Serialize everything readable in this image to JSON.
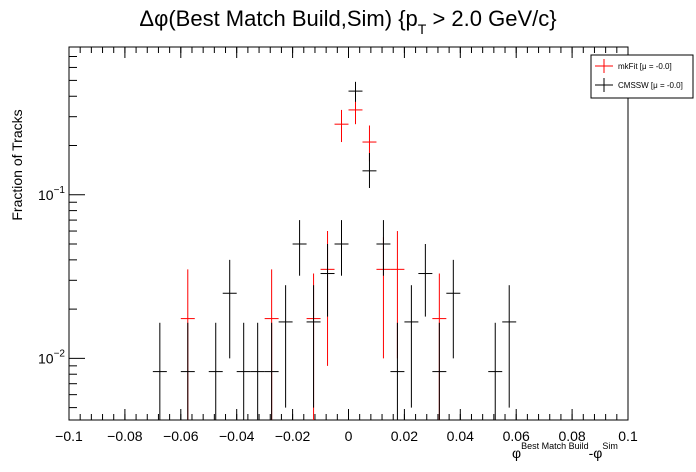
{
  "chart_data": {
    "type": "scatter",
    "title_parts": {
      "main": "Δφ(Best Match Build,Sim) {p",
      "sub": "T",
      "rest": " > 2.0 GeV/c}"
    },
    "xlabel_parts": {
      "main": "φ",
      "sup1": "Best Match Build",
      "mid": "-φ",
      "sup2": "Sim"
    },
    "ylabel": "Fraction of Tracks",
    "x_range": [
      -0.1,
      0.1
    ],
    "y_range": [
      0.0042,
      0.8
    ],
    "y_scale": "log",
    "bin_half_width": 0.0025,
    "x_ticks": [
      -0.1,
      -0.08,
      -0.06,
      -0.04,
      -0.02,
      0,
      0.02,
      0.04,
      0.06,
      0.08,
      0.1
    ],
    "x_tick_labels": [
      "−0.1",
      "−0.08",
      "−0.06",
      "−0.04",
      "−0.02",
      "0",
      "0.02",
      "0.04",
      "0.06",
      "0.08",
      "0.1"
    ],
    "y_major_ticks": [
      {
        "value": 0.1,
        "base": "10",
        "exp": "−1"
      },
      {
        "value": 0.01,
        "base": "10",
        "exp": "−2"
      }
    ],
    "legend_position": "top-right",
    "series": [
      {
        "name": "mkFit  [μ = -0.0]",
        "color": "#ff0000",
        "points": [
          {
            "x": -0.0575,
            "y": 0.0175,
            "lo": 0.0035,
            "hi": 0.035
          },
          {
            "x": -0.0275,
            "y": 0.0175,
            "lo": 0.0035,
            "hi": 0.035
          },
          {
            "x": -0.0125,
            "y": 0.0175,
            "lo": 0.0035,
            "hi": 0.033
          },
          {
            "x": -0.0075,
            "y": 0.035,
            "lo": 0.009,
            "hi": 0.06
          },
          {
            "x": -0.0025,
            "y": 0.27,
            "lo": 0.21,
            "hi": 0.33
          },
          {
            "x": 0.0025,
            "y": 0.33,
            "lo": 0.27,
            "hi": 0.4
          },
          {
            "x": 0.0075,
            "y": 0.21,
            "lo": 0.16,
            "hi": 0.265
          },
          {
            "x": 0.0125,
            "y": 0.035,
            "lo": 0.01,
            "hi": 0.055
          },
          {
            "x": 0.0175,
            "y": 0.035,
            "lo": 0.01,
            "hi": 0.06
          },
          {
            "x": 0.0325,
            "y": 0.0175,
            "lo": 0.0035,
            "hi": 0.033
          }
        ]
      },
      {
        "name": "CMSSW  [μ = -0.0]",
        "color": "#000000",
        "points": [
          {
            "x": -0.0675,
            "y": 0.0083,
            "lo": 0.0035,
            "hi": 0.0165
          },
          {
            "x": -0.0575,
            "y": 0.0083,
            "lo": 0.0035,
            "hi": 0.0165
          },
          {
            "x": -0.0475,
            "y": 0.0083,
            "lo": 0.0035,
            "hi": 0.0165
          },
          {
            "x": -0.0425,
            "y": 0.025,
            "lo": 0.01,
            "hi": 0.04
          },
          {
            "x": -0.0375,
            "y": 0.0083,
            "lo": 0.0035,
            "hi": 0.0165
          },
          {
            "x": -0.0325,
            "y": 0.0083,
            "lo": 0.0035,
            "hi": 0.0165
          },
          {
            "x": -0.0275,
            "y": 0.0083,
            "lo": 0.0035,
            "hi": 0.0165
          },
          {
            "x": -0.0225,
            "y": 0.0167,
            "lo": 0.005,
            "hi": 0.028
          },
          {
            "x": -0.0175,
            "y": 0.05,
            "lo": 0.032,
            "hi": 0.07
          },
          {
            "x": -0.0125,
            "y": 0.0167,
            "lo": 0.005,
            "hi": 0.028
          },
          {
            "x": -0.0075,
            "y": 0.033,
            "lo": 0.018,
            "hi": 0.05
          },
          {
            "x": -0.0025,
            "y": 0.05,
            "lo": 0.032,
            "hi": 0.07
          },
          {
            "x": 0.0025,
            "y": 0.43,
            "lo": 0.37,
            "hi": 0.49
          },
          {
            "x": 0.0075,
            "y": 0.14,
            "lo": 0.11,
            "hi": 0.18
          },
          {
            "x": 0.0175,
            "y": 0.0083,
            "lo": 0.0035,
            "hi": 0.0165
          },
          {
            "x": 0.0125,
            "y": 0.05,
            "lo": 0.032,
            "hi": 0.07
          },
          {
            "x": 0.0225,
            "y": 0.0167,
            "lo": 0.005,
            "hi": 0.028
          },
          {
            "x": 0.0275,
            "y": 0.033,
            "lo": 0.018,
            "hi": 0.05
          },
          {
            "x": 0.0325,
            "y": 0.0083,
            "lo": 0.0035,
            "hi": 0.0165
          },
          {
            "x": 0.0375,
            "y": 0.025,
            "lo": 0.01,
            "hi": 0.04
          },
          {
            "x": 0.0525,
            "y": 0.0083,
            "lo": 0.0035,
            "hi": 0.0165
          },
          {
            "x": 0.0575,
            "y": 0.0167,
            "lo": 0.005,
            "hi": 0.028
          }
        ]
      }
    ]
  }
}
